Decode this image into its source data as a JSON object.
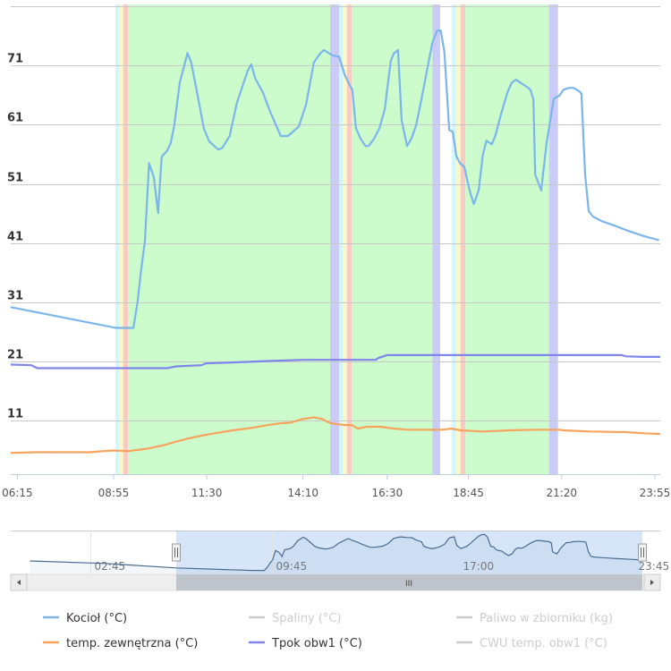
{
  "chart_data": {
    "type": "line",
    "title": "",
    "xlabel": "",
    "ylabel": "",
    "x_unit": "minutes since midnight",
    "xlim": [
      364,
      1444
    ],
    "ylim": [
      2,
      81.3
    ],
    "grid": true,
    "y_ticks": [
      11,
      21,
      31,
      41,
      51,
      61,
      71,
      81
    ],
    "y_tick_labels": [
      "11",
      "21",
      "31",
      "41",
      "51",
      "61",
      "71",
      ""
    ],
    "x_ticks": [
      375,
      535,
      690,
      850,
      990,
      1125,
      1280,
      1435
    ],
    "x_tick_labels": [
      "06:15",
      "08:55",
      "11:30",
      "14:10",
      "16:30",
      "18:45",
      "21:20",
      "23:55"
    ],
    "bands": [
      {
        "from": 538,
        "to": 545,
        "color": "#d2f7fb"
      },
      {
        "from": 545,
        "to": 551,
        "color": "#fbf8c8"
      },
      {
        "from": 551,
        "to": 559,
        "color": "#f8cbc4"
      },
      {
        "from": 559,
        "to": 895,
        "color": "#ccfccc"
      },
      {
        "from": 895,
        "to": 910,
        "color": "#cbcbf8"
      },
      {
        "from": 910,
        "to": 916,
        "color": "#d2f7fb"
      },
      {
        "from": 916,
        "to": 923,
        "color": "#fbf8c8"
      },
      {
        "from": 923,
        "to": 931,
        "color": "#f8cbc4"
      },
      {
        "from": 931,
        "to": 1065,
        "color": "#ccfccc"
      },
      {
        "from": 1065,
        "to": 1078,
        "color": "#cbcbf8"
      },
      {
        "from": 1097,
        "to": 1105,
        "color": "#d2f7fb"
      },
      {
        "from": 1105,
        "to": 1112,
        "color": "#fbf8c8"
      },
      {
        "from": 1112,
        "to": 1120,
        "color": "#f8cbc4"
      },
      {
        "from": 1120,
        "to": 1259,
        "color": "#ccfccc"
      },
      {
        "from": 1259,
        "to": 1274,
        "color": "#cbcbf8"
      }
    ],
    "series": [
      {
        "name": "Kocioł (°C)",
        "color": "#7cb5ec",
        "visible": true,
        "points": [
          [
            364,
            30.2
          ],
          [
            539,
            26.7
          ],
          [
            568,
            26.7
          ],
          [
            575,
            31.1
          ],
          [
            581,
            36.7
          ],
          [
            587,
            41.2
          ],
          [
            594,
            54.5
          ],
          [
            602,
            52.1
          ],
          [
            609,
            46.1
          ],
          [
            615,
            55.6
          ],
          [
            624,
            56.6
          ],
          [
            630,
            57.9
          ],
          [
            636,
            60.9
          ],
          [
            645,
            68.1
          ],
          [
            658,
            73.1
          ],
          [
            664,
            71.5
          ],
          [
            673,
            66.9
          ],
          [
            685,
            60.4
          ],
          [
            694,
            58.2
          ],
          [
            709,
            56.8
          ],
          [
            716,
            57.1
          ],
          [
            728,
            59.1
          ],
          [
            740,
            64.7
          ],
          [
            758,
            70.1
          ],
          [
            764,
            71.2
          ],
          [
            771,
            68.7
          ],
          [
            783,
            66.5
          ],
          [
            795,
            63.3
          ],
          [
            813,
            59.1
          ],
          [
            825,
            59.1
          ],
          [
            843,
            60.7
          ],
          [
            855,
            64.4
          ],
          [
            868,
            71.5
          ],
          [
            879,
            73.1
          ],
          [
            885,
            73.6
          ],
          [
            899,
            72.7
          ],
          [
            910,
            72.5
          ],
          [
            919,
            69.5
          ],
          [
            926,
            68.0
          ],
          [
            932,
            66.9
          ],
          [
            938,
            60.4
          ],
          [
            946,
            58.6
          ],
          [
            954,
            57.4
          ],
          [
            959,
            57.4
          ],
          [
            968,
            58.6
          ],
          [
            977,
            60.4
          ],
          [
            986,
            63.6
          ],
          [
            992,
            68.7
          ],
          [
            996,
            71.8
          ],
          [
            1001,
            73.0
          ],
          [
            1008,
            73.6
          ],
          [
            1014,
            61.8
          ],
          [
            1023,
            57.4
          ],
          [
            1030,
            58.6
          ],
          [
            1038,
            60.9
          ],
          [
            1047,
            65.3
          ],
          [
            1056,
            70.1
          ],
          [
            1065,
            74.8
          ],
          [
            1073,
            76.9
          ],
          [
            1079,
            76.9
          ],
          [
            1085,
            73.3
          ],
          [
            1093,
            60.1
          ],
          [
            1099,
            59.8
          ],
          [
            1105,
            55.7
          ],
          [
            1111,
            54.5
          ],
          [
            1118,
            53.9
          ],
          [
            1127,
            49.9
          ],
          [
            1134,
            47.6
          ],
          [
            1142,
            49.9
          ],
          [
            1149,
            55.9
          ],
          [
            1155,
            58.3
          ],
          [
            1164,
            57.7
          ],
          [
            1170,
            59.2
          ],
          [
            1179,
            62.7
          ],
          [
            1190,
            66.5
          ],
          [
            1197,
            68.1
          ],
          [
            1204,
            68.6
          ],
          [
            1213,
            68.0
          ],
          [
            1222,
            67.4
          ],
          [
            1228,
            66.9
          ],
          [
            1233,
            65.3
          ],
          [
            1236,
            52.6
          ],
          [
            1246,
            49.9
          ],
          [
            1255,
            57.9
          ],
          [
            1267,
            65.4
          ],
          [
            1276,
            65.9
          ],
          [
            1283,
            66.9
          ],
          [
            1292,
            67.2
          ],
          [
            1300,
            67.2
          ],
          [
            1310,
            66.6
          ],
          [
            1313,
            66.2
          ],
          [
            1319,
            52.6
          ],
          [
            1325,
            46.4
          ],
          [
            1332,
            45.5
          ],
          [
            1347,
            44.7
          ],
          [
            1367,
            44.0
          ],
          [
            1390,
            43.1
          ],
          [
            1417,
            42.2
          ],
          [
            1442,
            41.5
          ]
        ]
      },
      {
        "name": "Spaliny (°C)",
        "color": "#cccccc",
        "visible": false,
        "points": []
      },
      {
        "name": "Paliwo w zbiorniku (kg)",
        "color": "#cccccc",
        "visible": false,
        "points": []
      },
      {
        "name": "temp. zewnętrzna (°C)",
        "color": "#f7a35c",
        "visible": true,
        "points": [
          [
            364,
            5.6
          ],
          [
            406,
            5.7
          ],
          [
            495,
            5.7
          ],
          [
            532,
            6.0
          ],
          [
            559,
            5.9
          ],
          [
            591,
            6.3
          ],
          [
            621,
            6.95
          ],
          [
            636,
            7.4
          ],
          [
            658,
            8.0
          ],
          [
            681,
            8.5
          ],
          [
            703,
            8.9
          ],
          [
            733,
            9.4
          ],
          [
            763,
            9.8
          ],
          [
            792,
            10.3
          ],
          [
            812,
            10.6
          ],
          [
            829,
            10.7
          ],
          [
            849,
            11.3
          ],
          [
            868,
            11.6
          ],
          [
            882,
            11.3
          ],
          [
            896,
            10.6
          ],
          [
            919,
            10.3
          ],
          [
            931,
            10.3
          ],
          [
            941,
            9.7
          ],
          [
            956,
            10.0
          ],
          [
            978,
            10.0
          ],
          [
            1001,
            9.7
          ],
          [
            1023,
            9.5
          ],
          [
            1060,
            9.5
          ],
          [
            1082,
            9.5
          ],
          [
            1097,
            9.7
          ],
          [
            1112,
            9.4
          ],
          [
            1149,
            9.2
          ],
          [
            1194,
            9.4
          ],
          [
            1239,
            9.5
          ],
          [
            1276,
            9.5
          ],
          [
            1283,
            9.4
          ],
          [
            1328,
            9.2
          ],
          [
            1387,
            9.1
          ],
          [
            1417,
            8.9
          ],
          [
            1444,
            8.8
          ]
        ]
      },
      {
        "name": "Tpok obw1 (°C)",
        "color": "#8085e9",
        "visible": true,
        "points": [
          [
            364,
            20.5
          ],
          [
            398,
            20.4
          ],
          [
            408,
            19.9
          ],
          [
            624,
            19.9
          ],
          [
            639,
            20.2
          ],
          [
            681,
            20.4
          ],
          [
            688,
            20.7
          ],
          [
            718,
            20.8
          ],
          [
            792,
            21.1
          ],
          [
            852,
            21.3
          ],
          [
            971,
            21.3
          ],
          [
            975,
            21.6
          ],
          [
            990,
            22.1
          ],
          [
            1380,
            22.1
          ],
          [
            1387,
            21.9
          ],
          [
            1417,
            21.8
          ],
          [
            1444,
            21.8
          ]
        ]
      },
      {
        "name": "CWU temp. obw1 (°C)",
        "color": "#cccccc",
        "visible": false,
        "points": []
      }
    ]
  },
  "navigator": {
    "x_ticks": [
      165,
      585,
      1020,
      1425
    ],
    "x_tick_labels": [
      "02:45",
      "09:45",
      "17:00",
      "23:45"
    ],
    "early_points": [
      [
        25,
        40.0
      ],
      [
        200,
        36.5
      ],
      [
        364,
        30.2
      ]
    ],
    "selection": [
      364,
      1444
    ],
    "scrollbar_grip": "III"
  }
}
